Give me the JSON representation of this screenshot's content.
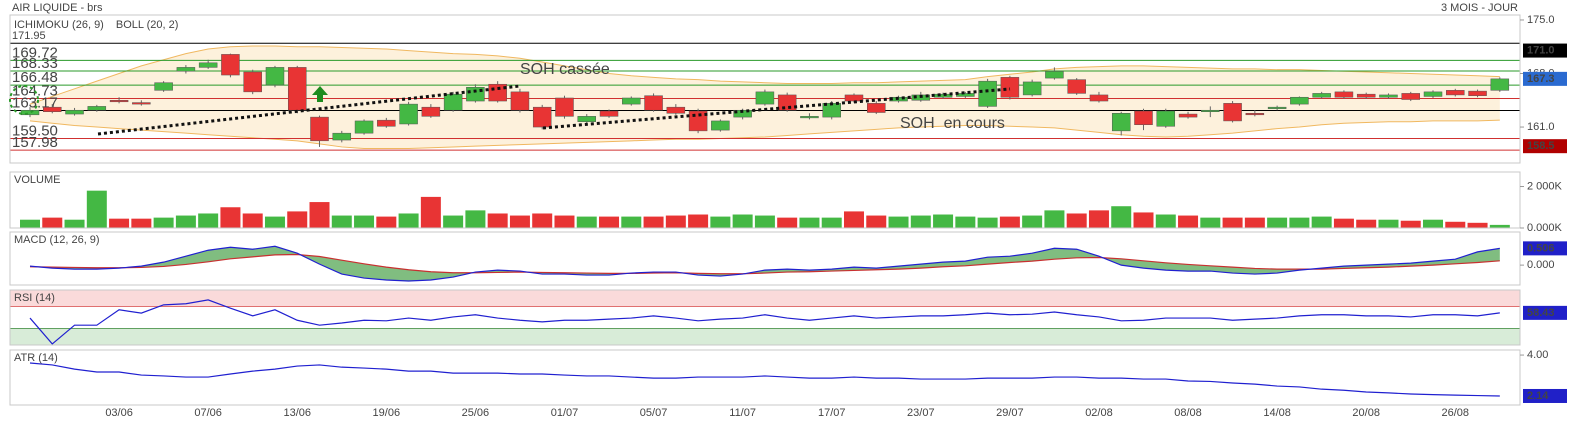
{
  "header": {
    "title": "AIR LIQUIDE - brs",
    "period": "3 MOIS - JOUR"
  },
  "chart_data": [
    {
      "type": "candlestick",
      "indicators": [
        {
          "name": "ICHIMOKU (26, 9)",
          "color": "#2020c8"
        },
        {
          "name": "BOLL (20, 2)",
          "color": "#e8a040"
        }
      ],
      "categories": [
        null,
        null,
        null,
        null,
        "03/06",
        null,
        null,
        null,
        "07/06",
        null,
        null,
        null,
        "13/06",
        null,
        null,
        null,
        "19/06",
        null,
        null,
        null,
        "25/06",
        null,
        null,
        null,
        "01/07",
        null,
        null,
        null,
        "05/07",
        null,
        null,
        null,
        "11/07",
        null,
        null,
        null,
        "17/07",
        null,
        null,
        null,
        "23/07",
        null,
        null,
        null,
        "29/07",
        null,
        null,
        null,
        "02/08",
        null,
        null,
        null,
        "08/08",
        null,
        null,
        null,
        "14/08",
        null,
        null,
        null,
        "20/08",
        null,
        null,
        null,
        "26/08",
        null,
        null
      ],
      "open": [
        162.6,
        163.6,
        162.7,
        163.2,
        164.5,
        164.2,
        165.8,
        168.3,
        168.8,
        170.5,
        168.2,
        166.5,
        168.8,
        162.3,
        159.3,
        160.2,
        161.9,
        161.4,
        163.6,
        163.2,
        164.4,
        166.6,
        165.6,
        163.6,
        164.8,
        161.7,
        163.1,
        164.0,
        165.1,
        163.6,
        163.1,
        160.6,
        162.3,
        164.0,
        165.2,
        162.2,
        162.3,
        165.2,
        164.1,
        164.4,
        164.5,
        164.9,
        165.0,
        163.7,
        167.5,
        165.2,
        167.4,
        167.2,
        165.2,
        160.5,
        163.1,
        161.1,
        162.7,
        163.0,
        164.1,
        162.8,
        163.4,
        164.0,
        164.9,
        165.6,
        165.3,
        164.9,
        165.4,
        165.0,
        165.8,
        165.7,
        165.8
      ],
      "high": [
        163.6,
        164.0,
        163.5,
        163.9,
        164.9,
        164.5,
        167.0,
        169.1,
        169.8,
        170.6,
        168.5,
        169.0,
        169.0,
        162.5,
        160.5,
        162.0,
        162.2,
        164.3,
        164.0,
        165.6,
        166.6,
        167.0,
        166.0,
        163.9,
        165.1,
        162.7,
        163.3,
        165.0,
        165.4,
        164.0,
        163.4,
        162.0,
        163.4,
        165.9,
        165.5,
        162.8,
        164.4,
        165.4,
        164.4,
        165.1,
        165.6,
        165.5,
        165.6,
        167.3,
        167.7,
        167.2,
        168.8,
        167.4,
        165.6,
        163.0,
        163.4,
        163.4,
        163.0,
        163.7,
        164.4,
        163.2,
        163.8,
        165.0,
        165.6,
        165.8,
        165.5,
        165.4,
        165.6,
        165.8,
        166.0,
        165.9,
        167.5
      ],
      "low": [
        162.3,
        162.8,
        162.5,
        163.0,
        164.1,
        163.8,
        165.6,
        168.0,
        168.6,
        167.5,
        165.3,
        166.2,
        162.8,
        158.4,
        159.0,
        160.0,
        160.9,
        161.2,
        162.2,
        163.0,
        164.2,
        164.2,
        162.9,
        160.7,
        162.1,
        161.5,
        162.2,
        163.8,
        163.0,
        162.6,
        160.2,
        160.4,
        162.0,
        163.8,
        163.0,
        162.0,
        162.0,
        164.2,
        162.7,
        164.2,
        164.3,
        164.7,
        164.8,
        163.5,
        164.6,
        165.0,
        167.2,
        165.2,
        164.2,
        159.9,
        160.6,
        160.9,
        162.1,
        162.3,
        161.6,
        162.4,
        163.2,
        163.8,
        164.7,
        164.7,
        164.7,
        164.7,
        164.4,
        164.8,
        165.0,
        164.9,
        165.6
      ],
      "close": [
        163.2,
        163.0,
        163.2,
        163.7,
        164.3,
        164.0,
        166.8,
        168.8,
        169.4,
        167.8,
        165.6,
        168.8,
        163.2,
        159.2,
        160.2,
        161.8,
        161.1,
        164.0,
        162.4,
        165.3,
        166.2,
        164.4,
        163.2,
        161.0,
        162.4,
        162.4,
        162.4,
        164.8,
        163.2,
        162.8,
        160.5,
        161.8,
        163.2,
        165.6,
        163.2,
        162.4,
        164.1,
        164.4,
        162.9,
        164.9,
        165.2,
        165.3,
        165.4,
        167.0,
        164.9,
        166.9,
        168.3,
        165.4,
        164.4,
        162.8,
        161.3,
        163.1,
        162.3,
        163.2,
        161.8,
        162.6,
        163.6,
        164.9,
        165.4,
        164.9,
        164.9,
        165.2,
        164.6,
        165.6,
        165.2,
        165.1,
        167.3
      ],
      "up_color": "#44b844",
      "down_color": "#e83434",
      "bollinger": {
        "color": "#f0b860",
        "fill": "#fdf1dc",
        "upper": [
          164.0,
          165.0,
          166.0,
          167.0,
          168.0,
          169.0,
          169.8,
          170.6,
          171.2,
          171.5,
          171.6,
          171.6,
          171.5,
          171.5,
          171.4,
          171.3,
          171.2,
          171.0,
          170.8,
          170.6,
          170.5,
          170.3,
          170.0,
          169.5,
          169.0,
          168.5,
          168.0,
          167.7,
          167.5,
          167.3,
          167.2,
          167.0,
          166.9,
          166.8,
          166.7,
          166.7,
          166.7,
          166.8,
          166.8,
          166.9,
          167.0,
          167.1,
          167.2,
          167.6,
          167.9,
          168.2,
          168.6,
          168.8,
          168.9,
          169.0,
          169.0,
          168.9,
          168.8,
          168.7,
          168.6,
          168.6,
          168.5,
          168.5,
          168.4,
          168.3,
          168.2,
          168.1,
          168.0,
          167.9,
          167.8,
          167.7,
          167.6
        ],
        "lower": [
          161.8,
          161.5,
          161.2,
          161.0,
          160.8,
          160.6,
          160.4,
          160.2,
          160.0,
          159.8,
          159.6,
          159.4,
          159.2,
          158.8,
          158.4,
          158.2,
          158.2,
          158.2,
          158.3,
          158.4,
          158.5,
          158.6,
          158.7,
          158.8,
          158.9,
          159.0,
          159.1,
          159.2,
          159.3,
          159.4,
          159.4,
          159.5,
          159.6,
          159.7,
          159.9,
          160.1,
          160.3,
          160.5,
          160.7,
          160.9,
          161.0,
          161.1,
          161.2,
          161.2,
          161.1,
          161.0,
          160.9,
          160.6,
          160.3,
          160.0,
          159.8,
          159.7,
          159.8,
          160.0,
          160.2,
          160.5,
          160.8,
          161.0,
          161.3,
          161.5,
          161.6,
          161.7,
          161.7,
          161.8,
          161.8,
          161.8,
          161.9
        ]
      },
      "levels": [
        {
          "value": 171.95,
          "label": "171.95",
          "color": "#000000"
        },
        {
          "value": 169.72,
          "label": "169.72",
          "color": "#2a9a2a"
        },
        {
          "value": 168.33,
          "label": "168.33",
          "color": "#2a9a2a"
        },
        {
          "value": 166.48,
          "label": "166.48",
          "color": "#2a9a2a"
        },
        {
          "value": 164.73,
          "label": "164.73",
          "color": "#d03030"
        },
        {
          "value": 163.17,
          "label": "163.17",
          "color": "#000000"
        },
        {
          "value": 159.5,
          "label": "159.50",
          "color": "#d03030"
        },
        {
          "value": 157.98,
          "label": "157.98",
          "color": "#d03030"
        }
      ],
      "markers": [
        {
          "value": 171,
          "label": "171.0",
          "color": "#000000",
          "text_color": "#7cff7c"
        },
        {
          "value": 158.5,
          "label": "158.5",
          "color": "#b00000",
          "text_color": "#ffffff"
        }
      ],
      "last_color": "#2a6ad0",
      "annotations": [
        {
          "text": "SOH cassée",
          "color": "#2ea02e"
        },
        {
          "text": "SOH  en cours",
          "color": "#111111"
        }
      ],
      "ylim": [
        156.3,
        175.65
      ],
      "yticks": [
        {
          "value": 175,
          "label": "175.0"
        },
        {
          "value": 168,
          "label": "168.0"
        },
        {
          "value": 161,
          "label": "161.0"
        }
      ]
    },
    {
      "type": "bar",
      "title": "VOLUME",
      "title_color": "#2a9a2a",
      "values": [
        400,
        500,
        400,
        1800,
        450,
        450,
        500,
        600,
        700,
        1000,
        700,
        550,
        800,
        1250,
        600,
        600,
        550,
        700,
        1500,
        600,
        850,
        700,
        600,
        700,
        600,
        550,
        550,
        550,
        550,
        600,
        650,
        550,
        650,
        600,
        500,
        500,
        500,
        800,
        600,
        550,
        600,
        650,
        550,
        500,
        550,
        600,
        850,
        700,
        850,
        1050,
        750,
        650,
        600,
        500,
        500,
        500,
        500,
        500,
        550,
        450,
        400,
        400,
        350,
        400,
        300,
        250,
        150
      ],
      "ylim": [
        0,
        2700
      ],
      "yticks": [
        {
          "value": 2000,
          "label": "2 000K"
        },
        {
          "value": 0,
          "label": "0.000K"
        }
      ]
    },
    {
      "type": "line",
      "title": "MACD (12, 26, 9)",
      "title_color": "#2020c8",
      "series": [
        {
          "color": "#2020d0",
          "values": [
            -0.03,
            -0.09,
            -0.12,
            -0.12,
            -0.09,
            -0.03,
            0.09,
            0.27,
            0.45,
            0.54,
            0.48,
            0.57,
            0.36,
            0.03,
            -0.27,
            -0.39,
            -0.45,
            -0.48,
            -0.45,
            -0.36,
            -0.21,
            -0.15,
            -0.18,
            -0.27,
            -0.27,
            -0.3,
            -0.3,
            -0.24,
            -0.21,
            -0.21,
            -0.3,
            -0.33,
            -0.27,
            -0.15,
            -0.12,
            -0.15,
            -0.12,
            -0.06,
            -0.09,
            -0.03,
            0.03,
            0.09,
            0.12,
            0.24,
            0.27,
            0.36,
            0.51,
            0.48,
            0.27,
            0.0,
            -0.09,
            -0.15,
            -0.18,
            -0.18,
            -0.24,
            -0.27,
            -0.24,
            -0.15,
            -0.09,
            -0.03,
            0.0,
            0.03,
            0.06,
            0.12,
            0.18,
            0.4,
            0.506
          ]
        },
        {
          "color": "#c83030",
          "values": [
            -0.05,
            -0.06,
            -0.07,
            -0.08,
            -0.08,
            -0.07,
            -0.04,
            0.02,
            0.1,
            0.19,
            0.25,
            0.31,
            0.32,
            0.26,
            0.15,
            0.04,
            -0.06,
            -0.14,
            -0.2,
            -0.23,
            -0.23,
            -0.22,
            -0.21,
            -0.22,
            -0.23,
            -0.24,
            -0.25,
            -0.25,
            -0.24,
            -0.23,
            -0.25,
            -0.26,
            -0.26,
            -0.24,
            -0.21,
            -0.2,
            -0.18,
            -0.16,
            -0.14,
            -0.12,
            -0.09,
            -0.05,
            -0.02,
            0.03,
            0.08,
            0.12,
            0.18,
            0.22,
            0.23,
            0.19,
            0.13,
            0.07,
            0.02,
            -0.02,
            -0.06,
            -0.1,
            -0.12,
            -0.12,
            -0.12,
            -0.1,
            -0.08,
            -0.06,
            -0.03,
            0.0,
            0.04,
            0.08,
            0.13
          ]
        }
      ],
      "fill": "#3c9a3c",
      "box_color": "#2020c8",
      "ylim": [
        -0.6,
        1.0
      ],
      "yticks": [
        {
          "value": 0,
          "label": "0.000"
        }
      ]
    },
    {
      "type": "line",
      "title": "RSI (14)",
      "title_color": "#2020c8",
      "series": [
        {
          "color": "#2020d0",
          "values": [
            49,
            2,
            36,
            36,
            64,
            58,
            73,
            75,
            82,
            67,
            53,
            64,
            45,
            36,
            40,
            45,
            44,
            49,
            45,
            51,
            55,
            49,
            45,
            42,
            45,
            45,
            47,
            49,
            53,
            49,
            44,
            47,
            49,
            55,
            49,
            45,
            49,
            53,
            49,
            51,
            53,
            53,
            55,
            58,
            55,
            56,
            60,
            55,
            51,
            44,
            45,
            49,
            49,
            49,
            45,
            47,
            49,
            53,
            55,
            55,
            53,
            53,
            51,
            55,
            55,
            53,
            58.43
          ]
        }
      ],
      "overbought": 70,
      "oversold": 30,
      "overbought_color": "#fadada",
      "oversold_color": "#d8ecd8",
      "box_color": "#2020c8",
      "ylim": [
        0,
        100
      ],
      "yticks": []
    },
    {
      "type": "line",
      "title": "ATR (14)",
      "title_color": "#2020c8",
      "series": [
        {
          "color": "#2020d0",
          "values": [
            3.64,
            3.55,
            3.36,
            3.23,
            3.23,
            3.09,
            3.05,
            3.0,
            3.0,
            3.14,
            3.27,
            3.36,
            3.5,
            3.55,
            3.45,
            3.41,
            3.36,
            3.27,
            3.27,
            3.18,
            3.18,
            3.18,
            3.14,
            3.14,
            3.09,
            3.05,
            3.05,
            3.0,
            2.95,
            2.95,
            3.0,
            3.0,
            3.0,
            3.05,
            3.0,
            2.95,
            2.95,
            3.0,
            2.95,
            2.95,
            2.91,
            2.91,
            2.91,
            2.95,
            2.95,
            2.95,
            3.0,
            3.0,
            2.95,
            2.95,
            2.91,
            2.91,
            2.82,
            2.8,
            2.73,
            2.68,
            2.59,
            2.55,
            2.45,
            2.4,
            2.32,
            2.28,
            2.23,
            2.2,
            2.18,
            2.16,
            2.14
          ]
        }
      ],
      "box_color": "#2020c8",
      "bottom_label": "0.000",
      "ylim": [
        1.73,
        4.23
      ],
      "yticks": [
        {
          "value": 4,
          "label": "4.00"
        }
      ]
    }
  ]
}
